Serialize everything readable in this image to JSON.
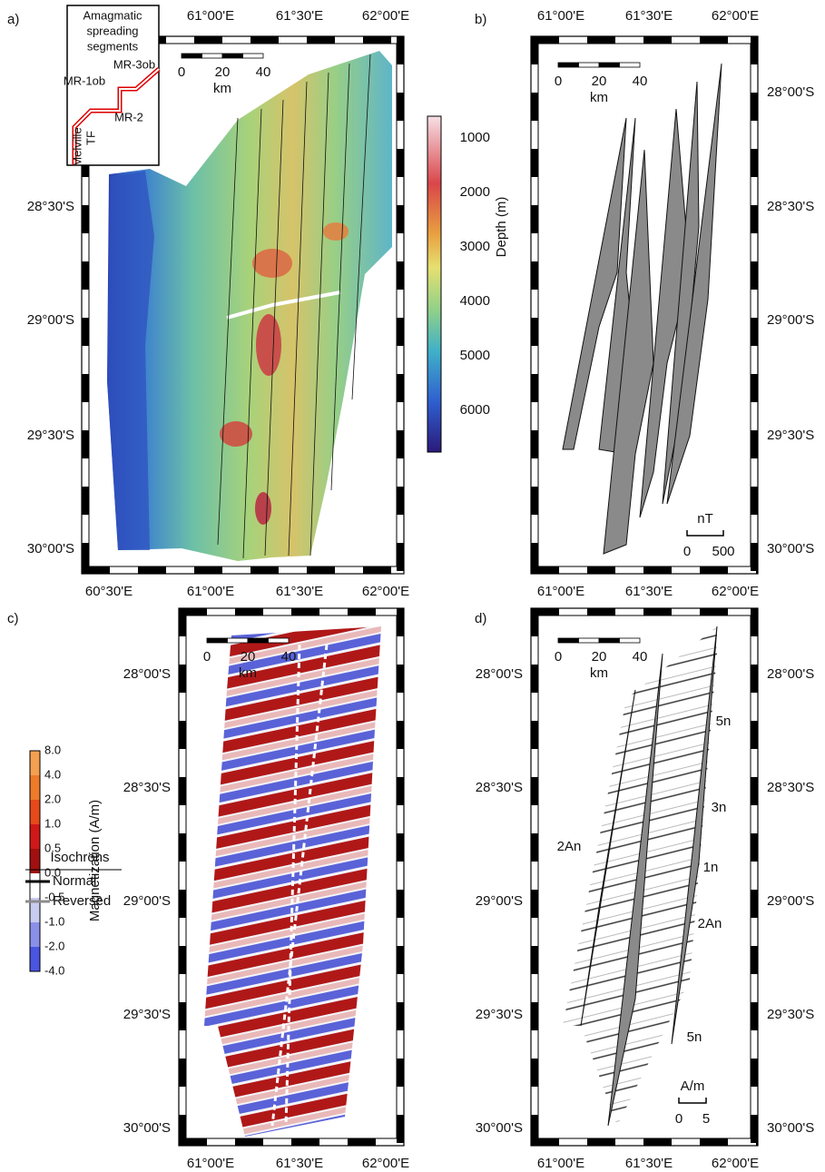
{
  "panels": [
    {
      "label": "a)",
      "lon_top": [
        "61°00'E",
        "61°30'E",
        "62°00'E"
      ],
      "lon_bottom": [
        "60°30'E",
        "61°00'E",
        "61°30'E",
        "62°00'E"
      ],
      "lat_left": [
        "28°30'S",
        "29°00'S",
        "29°30'S",
        "30°00'S"
      ],
      "scale": {
        "ticks": [
          "0",
          "20",
          "40"
        ],
        "unit": "km"
      },
      "inset": {
        "title_lines": [
          "Amagmatic",
          "spreading",
          "segments"
        ],
        "labels": [
          "MR-1ob",
          "MR-3ob",
          "MR-2",
          "Melville",
          "TF"
        ]
      },
      "colorbar": {
        "title": "Depth (m)",
        "ticks": [
          "1000",
          "2000",
          "3000",
          "4000",
          "5000",
          "6000"
        ]
      }
    },
    {
      "label": "b)",
      "lon_top": [
        "61°00'E",
        "61°30'E",
        "62°00'E"
      ],
      "lon_bottom": [
        "61°00'E",
        "61°30'E",
        "62°00'E"
      ],
      "lat_right": [
        "28°00'S",
        "28°30'S",
        "29°00'S",
        "29°30'S",
        "30°00'S"
      ],
      "scale": {
        "ticks": [
          "0",
          "20",
          "40"
        ],
        "unit": "km"
      },
      "anomaly_scale": {
        "unit": "nT",
        "ticks": [
          "0",
          "500"
        ]
      }
    },
    {
      "label": "c)",
      "lon_bottom": [
        "61°00'E",
        "61°30'E",
        "62°00'E"
      ],
      "lat_left": [
        "28°00'S",
        "28°30'S",
        "29°00'S",
        "29°30'S",
        "30°00'S"
      ],
      "scale": {
        "ticks": [
          "0",
          "20",
          "40"
        ],
        "unit": "km"
      },
      "colorbar": {
        "title": "Magnetization (A/m)",
        "ticks": [
          "8.0",
          "4.0",
          "2.0",
          "1.0",
          "0.5",
          "0.0",
          "-0.5",
          "-1.0",
          "-2.0",
          "-4.0"
        ]
      },
      "legend": {
        "title": "Isochrons",
        "items": [
          {
            "name": "Normal",
            "color": "#000000"
          },
          {
            "name": "Reversed",
            "color": "#8c8c8c"
          }
        ]
      }
    },
    {
      "label": "d)",
      "lon_bottom": [
        "61°00'E",
        "61°30'E",
        "62°00'E"
      ],
      "lat_left": [
        "28°00'S",
        "28°30'S",
        "29°00'S",
        "29°30'S",
        "30°00'S"
      ],
      "lat_right": [
        "28°00'S",
        "28°30'S",
        "29°00'S",
        "29°30'S",
        "30°00'S"
      ],
      "scale": {
        "ticks": [
          "0",
          "20",
          "40"
        ],
        "unit": "km"
      },
      "anomaly_scale": {
        "unit": "A/m",
        "ticks": [
          "0",
          "5"
        ]
      },
      "annotations": [
        "5n",
        "3n",
        "2An",
        "1n",
        "2An",
        "5n"
      ]
    }
  ]
}
